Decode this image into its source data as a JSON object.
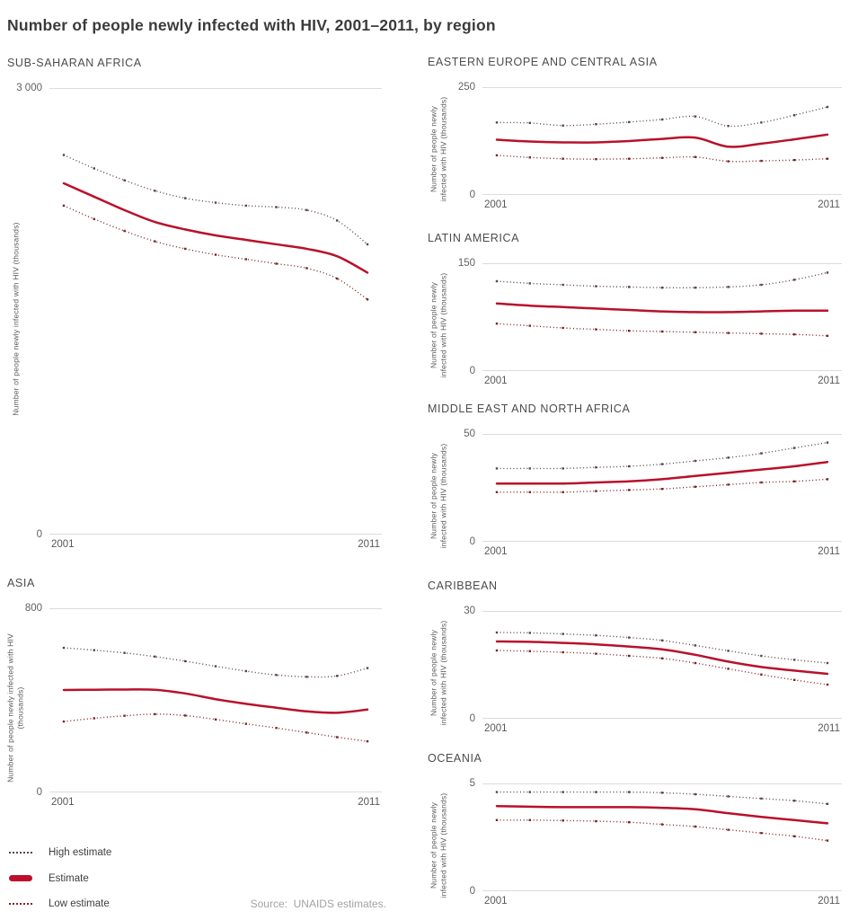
{
  "page_title": "Number of people newly infected with HIV, 2001–2011, by region",
  "source_note": "Source:  UNAIDS estimates.",
  "legend": {
    "items": [
      {
        "label": "High estimate",
        "style": "dotted",
        "color": "#5a4547"
      },
      {
        "label": "Estimate",
        "style": "solid",
        "color": "#bf0d2e"
      },
      {
        "label": "Low estimate",
        "style": "dotted",
        "color": "#7c2528"
      }
    ]
  },
  "style": {
    "gridline": "#dcdcdc",
    "estimate_red": "#b8112b",
    "high_dotted": "#5a4547",
    "low_dotted": "#7c2528"
  },
  "chart_data": [
    {
      "id": "ssa",
      "type": "line",
      "title": "SUB-SAHARAN AFRICA",
      "ylabel": "Number of people newly infected with HIV (thousands)",
      "ymax": 3000,
      "ymax_label": "3 000",
      "ymin_label": "0",
      "x": [
        2001,
        2002,
        2003,
        2004,
        2005,
        2006,
        2007,
        2008,
        2009,
        2010,
        2011
      ],
      "x_tick_labels": [
        "2001",
        "2011"
      ],
      "series": [
        {
          "name": "High estimate",
          "style": "dotted",
          "color": "#5a4547",
          "values": [
            2550,
            2460,
            2380,
            2310,
            2260,
            2230,
            2210,
            2200,
            2180,
            2110,
            1950
          ]
        },
        {
          "name": "Estimate",
          "style": "solid",
          "color": "#b8112b",
          "values": [
            2360,
            2270,
            2180,
            2100,
            2050,
            2010,
            1980,
            1950,
            1920,
            1870,
            1760
          ]
        },
        {
          "name": "Low estimate",
          "style": "dotted",
          "color": "#7c2528",
          "values": [
            2210,
            2120,
            2040,
            1970,
            1920,
            1880,
            1850,
            1820,
            1790,
            1720,
            1580
          ]
        }
      ]
    },
    {
      "id": "eeca",
      "type": "line",
      "title": "EASTERN EUROPE AND CENTRAL ASIA",
      "ylabel": "Number of people newly\ninfected with HIV (thousands)",
      "ymax": 250,
      "ymax_label": "250",
      "ymin_label": "0",
      "x": [
        2001,
        2002,
        2003,
        2004,
        2005,
        2006,
        2007,
        2008,
        2009,
        2010,
        2011
      ],
      "x_tick_labels": [
        "2001",
        "2011"
      ],
      "series": [
        {
          "name": "High estimate",
          "style": "dotted",
          "color": "#5a4547",
          "values": [
            168,
            167,
            161,
            164,
            169,
            175,
            182,
            160,
            168,
            185,
            204
          ]
        },
        {
          "name": "Estimate",
          "style": "solid",
          "color": "#b8112b",
          "values": [
            128,
            124,
            122,
            122,
            125,
            130,
            133,
            112,
            119,
            129,
            140
          ]
        },
        {
          "name": "Low estimate",
          "style": "dotted",
          "color": "#7c2528",
          "values": [
            92,
            87,
            84,
            83,
            84,
            86,
            88,
            78,
            79,
            81,
            84
          ]
        }
      ]
    },
    {
      "id": "la",
      "type": "line",
      "title": "LATIN AMERICA",
      "ylabel": "Number of people newly\ninfected with HIV (thousands)",
      "ymax": 150,
      "ymax_label": "150",
      "ymin_label": "0",
      "x": [
        2001,
        2002,
        2003,
        2004,
        2005,
        2006,
        2007,
        2008,
        2009,
        2010,
        2011
      ],
      "x_tick_labels": [
        "2001",
        "2011"
      ],
      "series": [
        {
          "name": "High estimate",
          "style": "dotted",
          "color": "#5a4547",
          "values": [
            125,
            122,
            120,
            118,
            117,
            116,
            116,
            117,
            120,
            127,
            137
          ]
        },
        {
          "name": "Estimate",
          "style": "solid",
          "color": "#b8112b",
          "values": [
            94,
            91,
            89,
            87,
            85,
            83,
            82,
            82,
            83,
            84,
            84
          ]
        },
        {
          "name": "Low estimate",
          "style": "dotted",
          "color": "#7c2528",
          "values": [
            66,
            63,
            60,
            58,
            56,
            55,
            54,
            53,
            52,
            51,
            49
          ]
        }
      ]
    },
    {
      "id": "mena",
      "type": "line",
      "title": "MIDDLE EAST AND NORTH AFRICA",
      "ylabel": "Number of people newly\ninfected with HIV (thousands)",
      "ymax": 50,
      "ymax_label": "50",
      "ymin_label": "0",
      "x": [
        2001,
        2002,
        2003,
        2004,
        2005,
        2006,
        2007,
        2008,
        2009,
        2010,
        2011
      ],
      "x_tick_labels": [
        "2001",
        "2011"
      ],
      "series": [
        {
          "name": "High estimate",
          "style": "dotted",
          "color": "#5a4547",
          "values": [
            34,
            34,
            34,
            34.5,
            35,
            36,
            37.5,
            39,
            41,
            43.5,
            46
          ]
        },
        {
          "name": "Estimate",
          "style": "solid",
          "color": "#b8112b",
          "values": [
            27,
            27,
            27,
            27.5,
            28,
            29,
            30.5,
            32,
            33.5,
            35,
            37
          ]
        },
        {
          "name": "Low estimate",
          "style": "dotted",
          "color": "#7c2528",
          "values": [
            23,
            23,
            23,
            23.5,
            24,
            24.5,
            25.5,
            26.5,
            27.5,
            28,
            29
          ]
        }
      ]
    },
    {
      "id": "asia",
      "type": "line",
      "title": "ASIA",
      "ylabel": "Number of people newly infected with HIV\n(thousands)",
      "ymax": 800,
      "ymax_label": "800",
      "ymin_label": "0",
      "x": [
        2001,
        2002,
        2003,
        2004,
        2005,
        2006,
        2007,
        2008,
        2009,
        2010,
        2011
      ],
      "x_tick_labels": [
        "2001",
        "2011"
      ],
      "series": [
        {
          "name": "High estimate",
          "style": "dotted",
          "color": "#5a4547",
          "values": [
            628,
            618,
            606,
            590,
            570,
            548,
            527,
            510,
            502,
            506,
            540
          ]
        },
        {
          "name": "Estimate",
          "style": "solid",
          "color": "#b8112b",
          "values": [
            445,
            446,
            447,
            446,
            430,
            405,
            385,
            368,
            352,
            346,
            360
          ]
        },
        {
          "name": "Low estimate",
          "style": "dotted",
          "color": "#7c2528",
          "values": [
            308,
            322,
            333,
            340,
            334,
            317,
            298,
            280,
            260,
            240,
            222
          ]
        }
      ]
    },
    {
      "id": "car",
      "type": "line",
      "title": "CARIBBEAN",
      "ylabel": "Number of people newly\ninfected with HIV (thousands)",
      "ymax": 30,
      "ymax_label": "30",
      "ymin_label": "0",
      "x": [
        2001,
        2002,
        2003,
        2004,
        2005,
        2006,
        2007,
        2008,
        2009,
        2010,
        2011
      ],
      "x_tick_labels": [
        "2001",
        "2011"
      ],
      "series": [
        {
          "name": "High estimate",
          "style": "dotted",
          "color": "#5a4547",
          "values": [
            24,
            23.9,
            23.6,
            23.2,
            22.6,
            21.8,
            20.4,
            18.9,
            17.5,
            16.4,
            15.5
          ]
        },
        {
          "name": "Estimate",
          "style": "solid",
          "color": "#b8112b",
          "values": [
            21.5,
            21.4,
            21.1,
            20.7,
            20.1,
            19.3,
            17.8,
            15.9,
            14.4,
            13.4,
            12.5
          ]
        },
        {
          "name": "Low estimate",
          "style": "dotted",
          "color": "#7c2528",
          "values": [
            19,
            18.8,
            18.5,
            18.1,
            17.5,
            16.8,
            15.5,
            13.9,
            12.3,
            10.8,
            9.5
          ]
        }
      ]
    },
    {
      "id": "oce",
      "type": "line",
      "title": "OCEANIA",
      "ylabel": "Number of people newly\ninfected with HIV (thousands)",
      "ymax": 5,
      "ymax_label": "5",
      "ymin_label": "0",
      "x": [
        2001,
        2002,
        2003,
        2004,
        2005,
        2006,
        2007,
        2008,
        2009,
        2010,
        2011
      ],
      "x_tick_labels": [
        "2001",
        "2011"
      ],
      "series": [
        {
          "name": "High estimate",
          "style": "dotted",
          "color": "#5a4547",
          "values": [
            4.6,
            4.6,
            4.6,
            4.6,
            4.6,
            4.57,
            4.5,
            4.4,
            4.3,
            4.2,
            4.05
          ]
        },
        {
          "name": "Estimate",
          "style": "solid",
          "color": "#b8112b",
          "values": [
            3.95,
            3.92,
            3.9,
            3.9,
            3.9,
            3.87,
            3.8,
            3.62,
            3.45,
            3.3,
            3.15
          ]
        },
        {
          "name": "Low estimate",
          "style": "dotted",
          "color": "#7c2528",
          "values": [
            3.3,
            3.3,
            3.28,
            3.25,
            3.2,
            3.1,
            3.0,
            2.85,
            2.7,
            2.55,
            2.35
          ]
        }
      ]
    }
  ]
}
